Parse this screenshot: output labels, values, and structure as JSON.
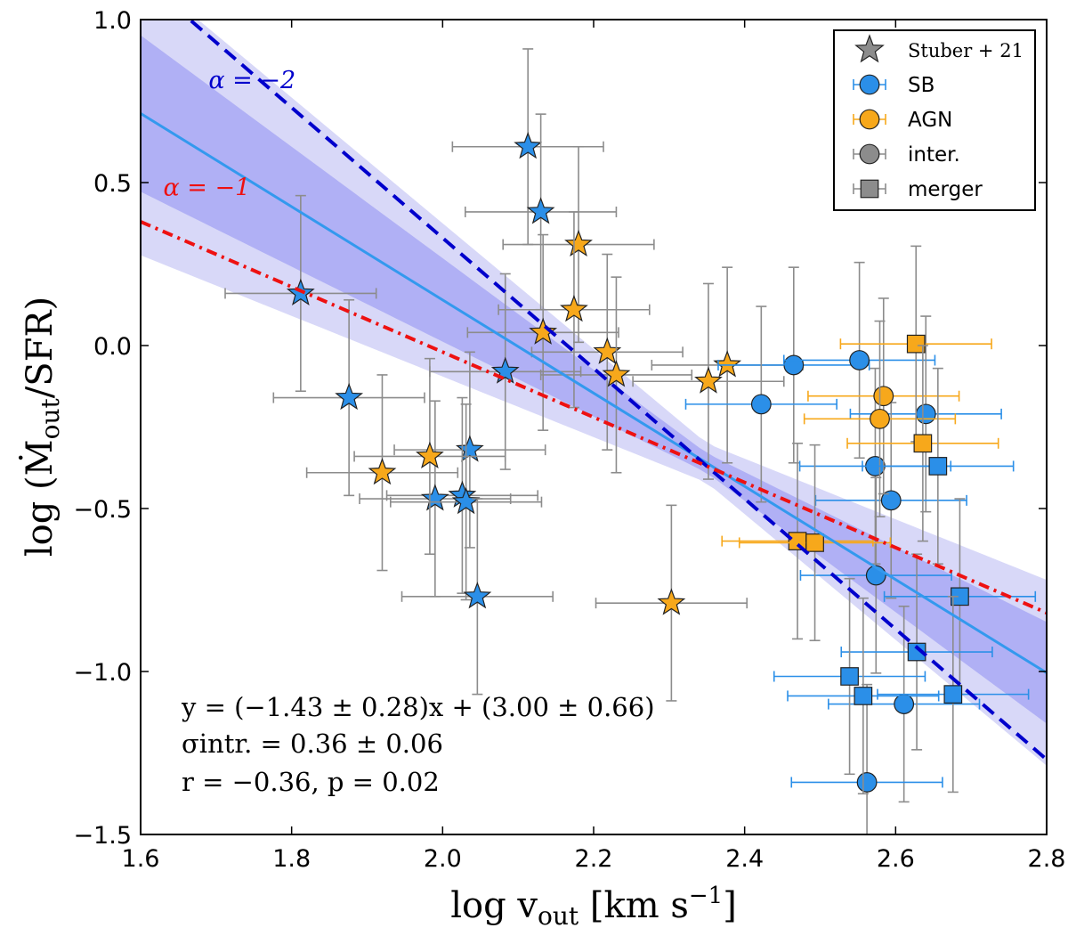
{
  "colors": {
    "sb": "#2b8fe8",
    "agn": "#f7a81b",
    "neutral": "#8c8c8c",
    "fit_line": "#3399ee",
    "band_inner": "#b0b0f5",
    "band_outer": "#d8d8f8",
    "alpha2": "#0000cc",
    "alpha1": "#ee1111",
    "error_bar": "#8c8c8c"
  },
  "chart_data": {
    "type": "scatter",
    "title": "",
    "xlabel": "log v_out [km s^-1]",
    "ylabel": "log (Ṁ_out / SFR)",
    "xlim": [
      1.6,
      2.8
    ],
    "ylim": [
      -1.5,
      1.0
    ],
    "xticks": [
      "1.6",
      "1.8",
      "2.0",
      "2.2",
      "2.4",
      "2.6",
      "2.8"
    ],
    "yticks": [
      "1.0",
      "0.5",
      "0.0",
      "−0.5",
      "−1.0",
      "−1.5"
    ],
    "grid": false,
    "legend_position": "top-right",
    "legend": [
      {
        "label": "Stuber + 21",
        "marker": "star",
        "color": "neutral"
      },
      {
        "label": "SB",
        "marker": "circle",
        "color": "sb"
      },
      {
        "label": "AGN",
        "marker": "circle",
        "color": "agn"
      },
      {
        "label": "inter.",
        "marker": "circle",
        "color": "neutral"
      },
      {
        "label": "merger",
        "marker": "square",
        "color": "neutral"
      }
    ],
    "fit": {
      "slope": -1.43,
      "intercept": 3.0,
      "equation": "y = (−1.43 ± 0.28)x + (3.00 ± 0.66)",
      "sigma": "σintr. = 0.36 ± 0.06",
      "corr": "r = −0.36, p = 0.02"
    },
    "reference_lines": [
      {
        "label": "α = −2",
        "slope": -2.0,
        "x0": 2.35,
        "y0": -0.37,
        "style": "dashed",
        "color": "alpha2",
        "label_x": 1.69,
        "label_y": 0.79
      },
      {
        "label": "α = −1",
        "slope": -1.0,
        "x0": 2.35,
        "y0": -0.37,
        "style": "dashdot",
        "color": "alpha1",
        "label_x": 1.63,
        "label_y": 0.46
      }
    ],
    "series": [
      {
        "name": "Stuber+21 stars",
        "marker": "star",
        "points": [
          {
            "x": 2.113,
            "y": 0.61,
            "c": "sb",
            "xe": 0.1,
            "ye": 0.3
          },
          {
            "x": 2.13,
            "y": 0.41,
            "c": "sb",
            "xe": 0.1,
            "ye": 0.3
          },
          {
            "x": 1.812,
            "y": 0.16,
            "c": "sb",
            "xe": 0.1,
            "ye": 0.3
          },
          {
            "x": 2.083,
            "y": -0.08,
            "c": "sb",
            "xe": 0.1,
            "ye": 0.3
          },
          {
            "x": 1.876,
            "y": -0.16,
            "c": "sb",
            "xe": 0.1,
            "ye": 0.3
          },
          {
            "x": 2.036,
            "y": -0.32,
            "c": "sb",
            "xe": 0.1,
            "ye": 0.3
          },
          {
            "x": 2.026,
            "y": -0.46,
            "c": "sb",
            "xe": 0.1,
            "ye": 0.3
          },
          {
            "x": 1.99,
            "y": -0.47,
            "c": "sb",
            "xe": 0.1,
            "ye": 0.3
          },
          {
            "x": 2.031,
            "y": -0.48,
            "c": "sb",
            "xe": 0.1,
            "ye": 0.3
          },
          {
            "x": 2.046,
            "y": -0.77,
            "c": "sb",
            "xe": 0.1,
            "ye": 0.3
          },
          {
            "x": 2.18,
            "y": 0.31,
            "c": "agn",
            "xe": 0.1,
            "ye": 0.3
          },
          {
            "x": 2.174,
            "y": 0.11,
            "c": "agn",
            "xe": 0.1,
            "ye": 0.3
          },
          {
            "x": 2.133,
            "y": 0.04,
            "c": "agn",
            "xe": 0.1,
            "ye": 0.3
          },
          {
            "x": 2.218,
            "y": -0.02,
            "c": "agn",
            "xe": 0.1,
            "ye": 0.3
          },
          {
            "x": 2.23,
            "y": -0.09,
            "c": "agn",
            "xe": 0.1,
            "ye": 0.3
          },
          {
            "x": 2.377,
            "y": -0.06,
            "c": "agn",
            "xe": 0.1,
            "ye": 0.3
          },
          {
            "x": 2.352,
            "y": -0.11,
            "c": "agn",
            "xe": 0.1,
            "ye": 0.3
          },
          {
            "x": 1.92,
            "y": -0.39,
            "c": "agn",
            "xe": 0.1,
            "ye": 0.3
          },
          {
            "x": 1.983,
            "y": -0.34,
            "c": "agn",
            "xe": 0.1,
            "ye": 0.3
          },
          {
            "x": 2.303,
            "y": -0.79,
            "c": "agn",
            "xe": 0.1,
            "ye": 0.3
          }
        ]
      },
      {
        "name": "interacting (circles)",
        "marker": "circle",
        "points": [
          {
            "x": 2.465,
            "y": -0.06,
            "c": "sb",
            "xe": 0.1,
            "ye": 0.3
          },
          {
            "x": 2.552,
            "y": -0.045,
            "c": "sb",
            "xe": 0.1,
            "ye": 0.3
          },
          {
            "x": 2.422,
            "y": -0.18,
            "c": "sb",
            "xe": 0.1,
            "ye": 0.3
          },
          {
            "x": 2.64,
            "y": -0.21,
            "c": "sb",
            "xe": 0.1,
            "ye": 0.3
          },
          {
            "x": 2.573,
            "y": -0.37,
            "c": "sb",
            "xe": 0.1,
            "ye": 0.3
          },
          {
            "x": 2.594,
            "y": -0.475,
            "c": "sb",
            "xe": 0.1,
            "ye": 0.3
          },
          {
            "x": 2.574,
            "y": -0.705,
            "c": "sb",
            "xe": 0.1,
            "ye": 0.3
          },
          {
            "x": 2.611,
            "y": -1.1,
            "c": "sb",
            "xe": 0.1,
            "ye": 0.3
          },
          {
            "x": 2.562,
            "y": -1.34,
            "c": "sb",
            "xe": 0.1,
            "ye": 0.3
          },
          {
            "x": 2.584,
            "y": -0.155,
            "c": "agn",
            "xe": 0.1,
            "ye": 0.3
          },
          {
            "x": 2.579,
            "y": -0.225,
            "c": "agn",
            "xe": 0.1,
            "ye": 0.3
          }
        ]
      },
      {
        "name": "merger (squares)",
        "marker": "square",
        "points": [
          {
            "x": 2.627,
            "y": 0.005,
            "c": "agn",
            "xe": 0.1,
            "ye": 0.3
          },
          {
            "x": 2.636,
            "y": -0.3,
            "c": "agn",
            "xe": 0.1,
            "ye": 0.3
          },
          {
            "x": 2.47,
            "y": -0.6,
            "c": "agn",
            "xe": 0.1,
            "ye": 0.3
          },
          {
            "x": 2.493,
            "y": -0.605,
            "c": "agn",
            "xe": 0.1,
            "ye": 0.3
          },
          {
            "x": 2.656,
            "y": -0.37,
            "c": "sb",
            "xe": 0.1,
            "ye": 0.3
          },
          {
            "x": 2.685,
            "y": -0.77,
            "c": "sb",
            "xe": 0.1,
            "ye": 0.3
          },
          {
            "x": 2.628,
            "y": -0.94,
            "c": "sb",
            "xe": 0.1,
            "ye": 0.3
          },
          {
            "x": 2.539,
            "y": -1.015,
            "c": "sb",
            "xe": 0.1,
            "ye": 0.3
          },
          {
            "x": 2.557,
            "y": -1.075,
            "c": "sb",
            "xe": 0.1,
            "ye": 0.3
          },
          {
            "x": 2.676,
            "y": -1.07,
            "c": "sb",
            "xe": 0.1,
            "ye": 0.3
          }
        ]
      }
    ]
  }
}
